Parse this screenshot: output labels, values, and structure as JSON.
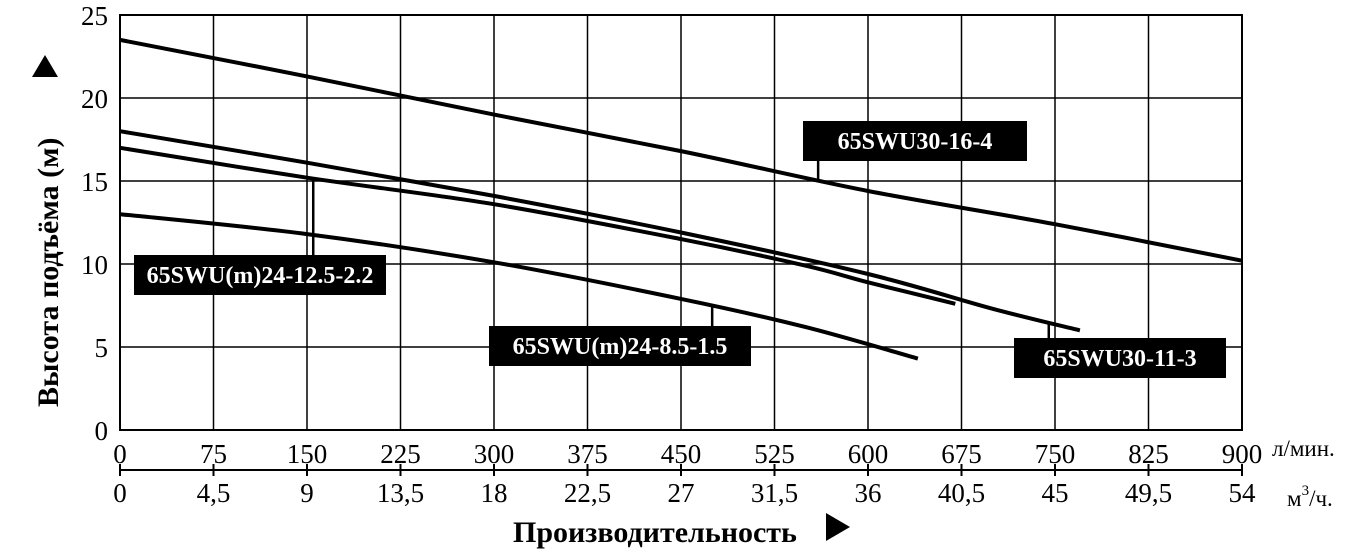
{
  "chart_data": {
    "type": "line",
    "xlabel": "Производительность",
    "ylabel": "Высота подъёма (м)",
    "x_unit": "л/мин.",
    "x2_unit_base": "м",
    "x2_unit_sup": "3",
    "x2_unit_tail": "/ч.",
    "xlim": [
      0,
      900
    ],
    "ylim": [
      0,
      25
    ],
    "grid": true,
    "x_ticks": [
      "0",
      "75",
      "150",
      "225",
      "300",
      "375",
      "450",
      "525",
      "600",
      "675",
      "750",
      "825",
      "900"
    ],
    "x2_ticks": [
      "0",
      "4,5",
      "9",
      "13,5",
      "18",
      "22,5",
      "27",
      "31,5",
      "36",
      "40,5",
      "45",
      "49,5",
      "54"
    ],
    "y_ticks": [
      "0",
      "5",
      "10",
      "15",
      "20",
      "25"
    ],
    "series": [
      {
        "name": "65SWU30-16-4",
        "x": [
          0,
          150,
          300,
          450,
          600,
          750,
          900
        ],
        "y": [
          23.5,
          21.3,
          19.0,
          16.8,
          14.4,
          12.4,
          10.2
        ]
      },
      {
        "name": "65SWU30-11-3",
        "x": [
          0,
          150,
          300,
          450,
          600,
          700,
          770
        ],
        "y": [
          18.0,
          16.1,
          14.1,
          11.9,
          9.4,
          7.3,
          6.0
        ]
      },
      {
        "name": "65SWU(m)24-12.5-2.2",
        "x": [
          0,
          150,
          300,
          450,
          550,
          600,
          670
        ],
        "y": [
          17.0,
          15.2,
          13.6,
          11.5,
          9.9,
          8.9,
          7.6
        ]
      },
      {
        "name": "65SWU(m)24-8.5-1.5",
        "x": [
          0,
          150,
          300,
          450,
          550,
          640
        ],
        "y": [
          13.0,
          11.8,
          10.1,
          7.9,
          6.2,
          4.3
        ]
      }
    ],
    "annotations": [
      {
        "text": "65SWU30-16-4",
        "series": 0,
        "at_x": 560
      },
      {
        "text": "65SWU30-11-3",
        "series": 1,
        "at_x": 745
      },
      {
        "text": "65SWU(m)24-12.5-2.2",
        "series": 2,
        "at_x": 155
      },
      {
        "text": "65SWU(m)24-8.5-1.5",
        "series": 3,
        "at_x": 475
      }
    ]
  }
}
